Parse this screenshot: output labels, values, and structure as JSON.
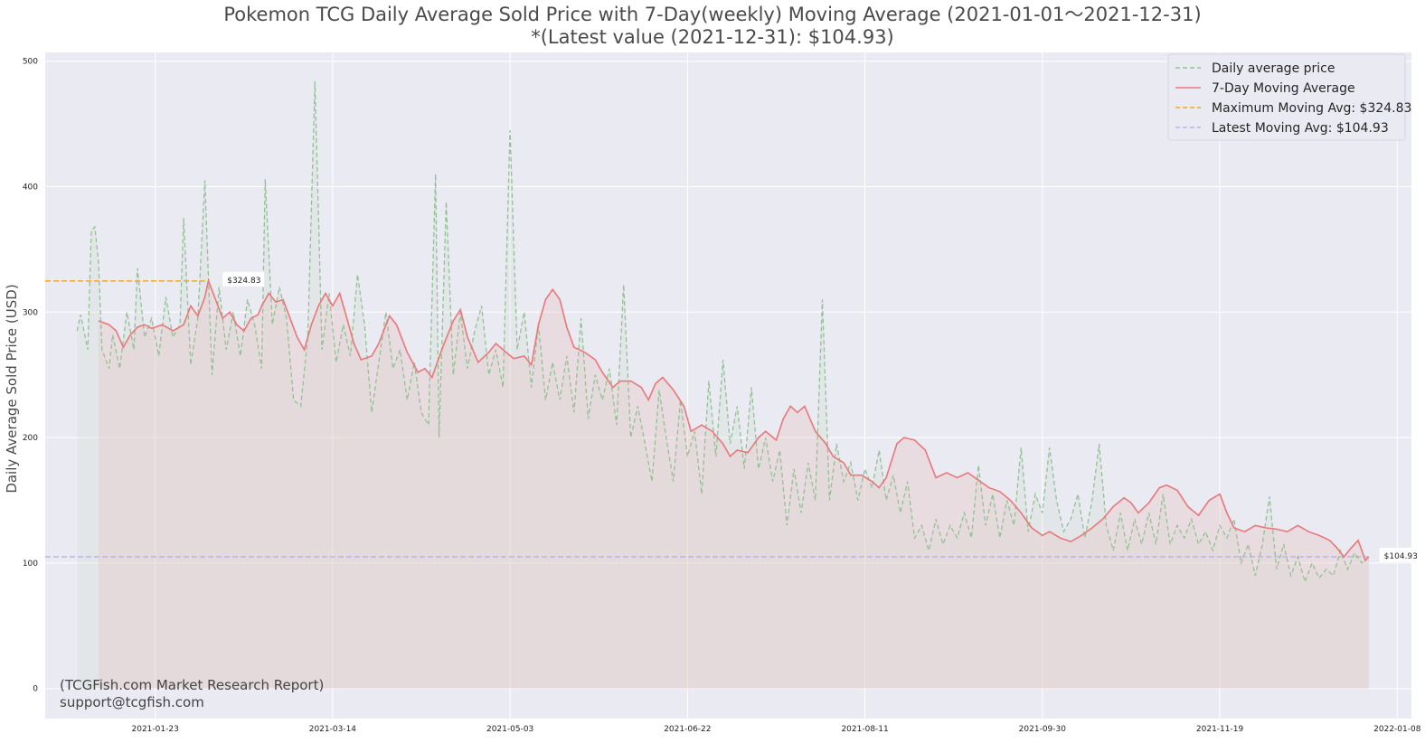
{
  "chart_data": {
    "type": "line",
    "title": "Pokemon TCG Daily Average Sold Price with 7-Day(weekly) Moving Average  (2021-01-01～2021-12-31)",
    "subtitle": "*(Latest value (2021-12-31): $104.93)",
    "ylabel": "Daily Average Sold Price (USD)",
    "xlabel": "",
    "x_range": [
      "2020-12-23",
      "2022-01-12"
    ],
    "ylim": [
      -24,
      507
    ],
    "x_ticks": [
      "2021-01-23",
      "2021-03-14",
      "2021-05-03",
      "2021-06-22",
      "2021-08-11",
      "2021-09-30",
      "2021-11-19",
      "2022-01-08"
    ],
    "y_ticks": [
      0,
      100,
      200,
      300,
      400,
      500
    ],
    "grid": true,
    "legend_position": "top-right",
    "legend": [
      {
        "label": "Daily average price",
        "color": "#93c193",
        "style": "dashed"
      },
      {
        "label": "7-Day Moving Average",
        "color": "#e8787a",
        "style": "solid"
      },
      {
        "label": "Maximum Moving Avg: $324.83",
        "color": "#f5a623",
        "style": "dashed"
      },
      {
        "label": "Latest Moving Avg: $104.93",
        "color": "#b9b5e6",
        "style": "dashed"
      }
    ],
    "max_moving_avg": 324.83,
    "max_moving_avg_label": "$324.83",
    "latest_moving_avg": 104.93,
    "latest_moving_avg_label": "$104.93",
    "daily_keypoints": [
      [
        "2021-01-01",
        285
      ],
      [
        "2021-01-02",
        298
      ],
      [
        "2021-01-04",
        270
      ],
      [
        "2021-01-05",
        365
      ],
      [
        "2021-01-06",
        368
      ],
      [
        "2021-01-07",
        340
      ],
      [
        "2021-01-08",
        270
      ],
      [
        "2021-01-10",
        255
      ],
      [
        "2021-01-11",
        282
      ],
      [
        "2021-01-13",
        255
      ],
      [
        "2021-01-15",
        300
      ],
      [
        "2021-01-17",
        270
      ],
      [
        "2021-01-18",
        335
      ],
      [
        "2021-01-20",
        280
      ],
      [
        "2021-01-22",
        295
      ],
      [
        "2021-01-24",
        265
      ],
      [
        "2021-01-26",
        312
      ],
      [
        "2021-01-28",
        280
      ],
      [
        "2021-01-30",
        290
      ],
      [
        "2021-01-31",
        375
      ],
      [
        "2021-02-02",
        258
      ],
      [
        "2021-02-04",
        295
      ],
      [
        "2021-02-06",
        405
      ],
      [
        "2021-02-08",
        250
      ],
      [
        "2021-02-10",
        320
      ],
      [
        "2021-02-12",
        270
      ],
      [
        "2021-02-14",
        300
      ],
      [
        "2021-02-16",
        265
      ],
      [
        "2021-02-18",
        310
      ],
      [
        "2021-02-20",
        290
      ],
      [
        "2021-02-22",
        255
      ],
      [
        "2021-02-23",
        406
      ],
      [
        "2021-02-25",
        290
      ],
      [
        "2021-02-27",
        320
      ],
      [
        "2021-03-01",
        295
      ],
      [
        "2021-03-03",
        230
      ],
      [
        "2021-03-05",
        225
      ],
      [
        "2021-03-07",
        280
      ],
      [
        "2021-03-09",
        484
      ],
      [
        "2021-03-11",
        270
      ],
      [
        "2021-03-13",
        315
      ],
      [
        "2021-03-15",
        260
      ],
      [
        "2021-03-17",
        290
      ],
      [
        "2021-03-19",
        265
      ],
      [
        "2021-03-21",
        330
      ],
      [
        "2021-03-23",
        290
      ],
      [
        "2021-03-25",
        220
      ],
      [
        "2021-03-27",
        260
      ],
      [
        "2021-03-29",
        300
      ],
      [
        "2021-03-31",
        255
      ],
      [
        "2021-04-02",
        270
      ],
      [
        "2021-04-04",
        230
      ],
      [
        "2021-04-06",
        260
      ],
      [
        "2021-04-08",
        220
      ],
      [
        "2021-04-10",
        210
      ],
      [
        "2021-04-12",
        410
      ],
      [
        "2021-04-13",
        200
      ],
      [
        "2021-04-15",
        388
      ],
      [
        "2021-04-17",
        250
      ],
      [
        "2021-04-19",
        300
      ],
      [
        "2021-04-21",
        255
      ],
      [
        "2021-04-23",
        285
      ],
      [
        "2021-04-25",
        305
      ],
      [
        "2021-04-27",
        250
      ],
      [
        "2021-04-29",
        270
      ],
      [
        "2021-05-01",
        240
      ],
      [
        "2021-05-03",
        445
      ],
      [
        "2021-05-05",
        270
      ],
      [
        "2021-05-07",
        300
      ],
      [
        "2021-05-09",
        240
      ],
      [
        "2021-05-11",
        290
      ],
      [
        "2021-05-13",
        230
      ],
      [
        "2021-05-15",
        260
      ],
      [
        "2021-05-17",
        230
      ],
      [
        "2021-05-19",
        265
      ],
      [
        "2021-05-21",
        220
      ],
      [
        "2021-05-23",
        295
      ],
      [
        "2021-05-25",
        215
      ],
      [
        "2021-05-27",
        250
      ],
      [
        "2021-05-29",
        230
      ],
      [
        "2021-05-31",
        255
      ],
      [
        "2021-06-02",
        210
      ],
      [
        "2021-06-04",
        322
      ],
      [
        "2021-06-06",
        200
      ],
      [
        "2021-06-08",
        225
      ],
      [
        "2021-06-10",
        195
      ],
      [
        "2021-06-12",
        165
      ],
      [
        "2021-06-14",
        238
      ],
      [
        "2021-06-16",
        200
      ],
      [
        "2021-06-18",
        165
      ],
      [
        "2021-06-20",
        230
      ],
      [
        "2021-06-22",
        185
      ],
      [
        "2021-06-24",
        205
      ],
      [
        "2021-06-26",
        155
      ],
      [
        "2021-06-28",
        245
      ],
      [
        "2021-06-30",
        185
      ],
      [
        "2021-07-02",
        262
      ],
      [
        "2021-07-04",
        195
      ],
      [
        "2021-07-06",
        225
      ],
      [
        "2021-07-08",
        175
      ],
      [
        "2021-07-10",
        240
      ],
      [
        "2021-07-12",
        175
      ],
      [
        "2021-07-14",
        200
      ],
      [
        "2021-07-16",
        165
      ],
      [
        "2021-07-18",
        190
      ],
      [
        "2021-07-20",
        130
      ],
      [
        "2021-07-22",
        175
      ],
      [
        "2021-07-24",
        140
      ],
      [
        "2021-07-26",
        180
      ],
      [
        "2021-07-28",
        150
      ],
      [
        "2021-07-30",
        310
      ],
      [
        "2021-08-01",
        150
      ],
      [
        "2021-08-03",
        195
      ],
      [
        "2021-08-05",
        165
      ],
      [
        "2021-08-07",
        180
      ],
      [
        "2021-08-09",
        150
      ],
      [
        "2021-08-11",
        175
      ],
      [
        "2021-08-13",
        160
      ],
      [
        "2021-08-15",
        190
      ],
      [
        "2021-08-17",
        150
      ],
      [
        "2021-08-19",
        170
      ],
      [
        "2021-08-21",
        140
      ],
      [
        "2021-08-23",
        165
      ],
      [
        "2021-08-25",
        120
      ],
      [
        "2021-08-27",
        130
      ],
      [
        "2021-08-29",
        110
      ],
      [
        "2021-08-31",
        135
      ],
      [
        "2021-09-02",
        115
      ],
      [
        "2021-09-04",
        130
      ],
      [
        "2021-09-06",
        120
      ],
      [
        "2021-09-08",
        140
      ],
      [
        "2021-09-10",
        120
      ],
      [
        "2021-09-12",
        178
      ],
      [
        "2021-09-14",
        130
      ],
      [
        "2021-09-16",
        155
      ],
      [
        "2021-09-18",
        120
      ],
      [
        "2021-09-20",
        150
      ],
      [
        "2021-09-22",
        130
      ],
      [
        "2021-09-24",
        192
      ],
      [
        "2021-09-26",
        125
      ],
      [
        "2021-09-28",
        155
      ],
      [
        "2021-09-30",
        140
      ],
      [
        "2021-10-02",
        192
      ],
      [
        "2021-10-04",
        150
      ],
      [
        "2021-10-06",
        125
      ],
      [
        "2021-10-08",
        135
      ],
      [
        "2021-10-10",
        155
      ],
      [
        "2021-10-12",
        120
      ],
      [
        "2021-10-14",
        150
      ],
      [
        "2021-10-16",
        195
      ],
      [
        "2021-10-18",
        130
      ],
      [
        "2021-10-20",
        110
      ],
      [
        "2021-10-22",
        140
      ],
      [
        "2021-10-24",
        110
      ],
      [
        "2021-10-26",
        135
      ],
      [
        "2021-10-28",
        115
      ],
      [
        "2021-10-30",
        140
      ],
      [
        "2021-11-01",
        115
      ],
      [
        "2021-11-03",
        155
      ],
      [
        "2021-11-05",
        115
      ],
      [
        "2021-11-07",
        130
      ],
      [
        "2021-11-09",
        120
      ],
      [
        "2021-11-11",
        135
      ],
      [
        "2021-11-13",
        115
      ],
      [
        "2021-11-15",
        125
      ],
      [
        "2021-11-17",
        110
      ],
      [
        "2021-11-19",
        130
      ],
      [
        "2021-11-21",
        120
      ],
      [
        "2021-11-23",
        135
      ],
      [
        "2021-11-25",
        100
      ],
      [
        "2021-11-27",
        115
      ],
      [
        "2021-11-29",
        90
      ],
      [
        "2021-12-01",
        115
      ],
      [
        "2021-12-03",
        153
      ],
      [
        "2021-12-05",
        95
      ],
      [
        "2021-12-07",
        115
      ],
      [
        "2021-12-09",
        90
      ],
      [
        "2021-12-11",
        105
      ],
      [
        "2021-12-13",
        85
      ],
      [
        "2021-12-15",
        100
      ],
      [
        "2021-12-17",
        88
      ],
      [
        "2021-12-19",
        95
      ],
      [
        "2021-12-21",
        90
      ],
      [
        "2021-12-23",
        110
      ],
      [
        "2021-12-25",
        95
      ],
      [
        "2021-12-27",
        108
      ],
      [
        "2021-12-29",
        100
      ],
      [
        "2021-12-31",
        105
      ]
    ],
    "moving_avg_keypoints": [
      [
        "2021-01-07",
        293
      ],
      [
        "2021-01-10",
        290
      ],
      [
        "2021-01-12",
        285
      ],
      [
        "2021-01-14",
        272
      ],
      [
        "2021-01-16",
        282
      ],
      [
        "2021-01-18",
        288
      ],
      [
        "2021-01-20",
        290
      ],
      [
        "2021-01-22",
        287
      ],
      [
        "2021-01-25",
        290
      ],
      [
        "2021-01-28",
        285
      ],
      [
        "2021-01-31",
        290
      ],
      [
        "2021-02-02",
        305
      ],
      [
        "2021-02-04",
        297
      ],
      [
        "2021-02-06",
        312
      ],
      [
        "2021-02-07",
        325
      ],
      [
        "2021-02-09",
        310
      ],
      [
        "2021-02-11",
        295
      ],
      [
        "2021-02-13",
        300
      ],
      [
        "2021-02-15",
        290
      ],
      [
        "2021-02-17",
        285
      ],
      [
        "2021-02-19",
        295
      ],
      [
        "2021-02-21",
        298
      ],
      [
        "2021-02-22",
        305
      ],
      [
        "2021-02-24",
        315
      ],
      [
        "2021-02-26",
        308
      ],
      [
        "2021-02-28",
        310
      ],
      [
        "2021-03-02",
        295
      ],
      [
        "2021-03-04",
        280
      ],
      [
        "2021-03-06",
        270
      ],
      [
        "2021-03-08",
        290
      ],
      [
        "2021-03-10",
        305
      ],
      [
        "2021-03-12",
        315
      ],
      [
        "2021-03-14",
        305
      ],
      [
        "2021-03-16",
        315
      ],
      [
        "2021-03-18",
        295
      ],
      [
        "2021-03-20",
        275
      ],
      [
        "2021-03-22",
        262
      ],
      [
        "2021-03-25",
        265
      ],
      [
        "2021-03-27",
        275
      ],
      [
        "2021-03-30",
        297
      ],
      [
        "2021-04-01",
        290
      ],
      [
        "2021-04-04",
        268
      ],
      [
        "2021-04-07",
        252
      ],
      [
        "2021-04-09",
        255
      ],
      [
        "2021-04-11",
        248
      ],
      [
        "2021-04-14",
        272
      ],
      [
        "2021-04-17",
        293
      ],
      [
        "2021-04-19",
        302
      ],
      [
        "2021-04-21",
        280
      ],
      [
        "2021-04-24",
        260
      ],
      [
        "2021-04-27",
        268
      ],
      [
        "2021-04-29",
        275
      ],
      [
        "2021-05-01",
        270
      ],
      [
        "2021-05-04",
        263
      ],
      [
        "2021-05-07",
        265
      ],
      [
        "2021-05-09",
        258
      ],
      [
        "2021-05-11",
        290
      ],
      [
        "2021-05-13",
        310
      ],
      [
        "2021-05-15",
        318
      ],
      [
        "2021-05-17",
        310
      ],
      [
        "2021-05-19",
        288
      ],
      [
        "2021-05-21",
        272
      ],
      [
        "2021-05-24",
        268
      ],
      [
        "2021-05-27",
        262
      ],
      [
        "2021-05-29",
        252
      ],
      [
        "2021-06-01",
        240
      ],
      [
        "2021-06-03",
        245
      ],
      [
        "2021-06-06",
        245
      ],
      [
        "2021-06-09",
        240
      ],
      [
        "2021-06-11",
        230
      ],
      [
        "2021-06-13",
        243
      ],
      [
        "2021-06-15",
        248
      ],
      [
        "2021-06-18",
        238
      ],
      [
        "2021-06-21",
        225
      ],
      [
        "2021-06-23",
        205
      ],
      [
        "2021-06-26",
        210
      ],
      [
        "2021-06-29",
        205
      ],
      [
        "2021-07-02",
        195
      ],
      [
        "2021-07-04",
        185
      ],
      [
        "2021-07-06",
        190
      ],
      [
        "2021-07-09",
        188
      ],
      [
        "2021-07-12",
        200
      ],
      [
        "2021-07-14",
        205
      ],
      [
        "2021-07-17",
        198
      ],
      [
        "2021-07-19",
        215
      ],
      [
        "2021-07-21",
        225
      ],
      [
        "2021-07-23",
        220
      ],
      [
        "2021-07-25",
        225
      ],
      [
        "2021-07-28",
        205
      ],
      [
        "2021-07-31",
        195
      ],
      [
        "2021-08-02",
        185
      ],
      [
        "2021-08-05",
        180
      ],
      [
        "2021-08-07",
        170
      ],
      [
        "2021-08-10",
        170
      ],
      [
        "2021-08-13",
        165
      ],
      [
        "2021-08-15",
        160
      ],
      [
        "2021-08-17",
        168
      ],
      [
        "2021-08-20",
        195
      ],
      [
        "2021-08-22",
        200
      ],
      [
        "2021-08-25",
        198
      ],
      [
        "2021-08-28",
        190
      ],
      [
        "2021-08-31",
        168
      ],
      [
        "2021-09-03",
        172
      ],
      [
        "2021-09-06",
        168
      ],
      [
        "2021-09-09",
        172
      ],
      [
        "2021-09-12",
        166
      ],
      [
        "2021-09-15",
        160
      ],
      [
        "2021-09-18",
        157
      ],
      [
        "2021-09-21",
        150
      ],
      [
        "2021-09-24",
        140
      ],
      [
        "2021-09-27",
        128
      ],
      [
        "2021-09-30",
        122
      ],
      [
        "2021-10-02",
        125
      ],
      [
        "2021-10-05",
        120
      ],
      [
        "2021-10-08",
        117
      ],
      [
        "2021-10-11",
        122
      ],
      [
        "2021-10-14",
        128
      ],
      [
        "2021-10-17",
        135
      ],
      [
        "2021-10-20",
        145
      ],
      [
        "2021-10-23",
        152
      ],
      [
        "2021-10-25",
        148
      ],
      [
        "2021-10-27",
        140
      ],
      [
        "2021-10-30",
        148
      ],
      [
        "2021-11-02",
        160
      ],
      [
        "2021-11-04",
        162
      ],
      [
        "2021-11-07",
        158
      ],
      [
        "2021-11-10",
        145
      ],
      [
        "2021-11-13",
        138
      ],
      [
        "2021-11-16",
        150
      ],
      [
        "2021-11-19",
        155
      ],
      [
        "2021-11-21",
        140
      ],
      [
        "2021-11-23",
        128
      ],
      [
        "2021-11-26",
        125
      ],
      [
        "2021-11-29",
        130
      ],
      [
        "2021-12-02",
        128
      ],
      [
        "2021-12-05",
        127
      ],
      [
        "2021-12-08",
        125
      ],
      [
        "2021-12-11",
        130
      ],
      [
        "2021-12-14",
        125
      ],
      [
        "2021-12-17",
        122
      ],
      [
        "2021-12-20",
        118
      ],
      [
        "2021-12-22",
        112
      ],
      [
        "2021-12-24",
        105
      ],
      [
        "2021-12-26",
        112
      ],
      [
        "2021-12-28",
        118
      ],
      [
        "2021-12-29",
        110
      ],
      [
        "2021-12-30",
        102
      ],
      [
        "2021-12-31",
        105
      ]
    ]
  },
  "watermark": {
    "line1": "(TCGFish.com Market Research Report)",
    "line2": "support@tcgfish.com"
  }
}
